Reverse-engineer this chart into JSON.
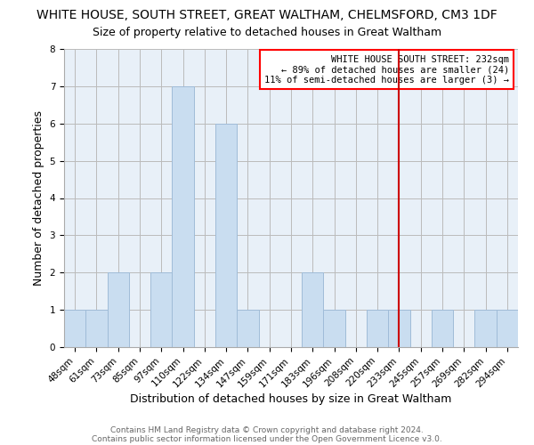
{
  "title": "WHITE HOUSE, SOUTH STREET, GREAT WALTHAM, CHELMSFORD, CM3 1DF",
  "subtitle": "Size of property relative to detached houses in Great Waltham",
  "xlabel": "Distribution of detached houses by size in Great Waltham",
  "ylabel": "Number of detached properties",
  "bar_labels": [
    "48sqm",
    "61sqm",
    "73sqm",
    "85sqm",
    "97sqm",
    "110sqm",
    "122sqm",
    "134sqm",
    "147sqm",
    "159sqm",
    "171sqm",
    "183sqm",
    "196sqm",
    "208sqm",
    "220sqm",
    "233sqm",
    "245sqm",
    "257sqm",
    "269sqm",
    "282sqm",
    "294sqm"
  ],
  "bar_values": [
    1,
    1,
    2,
    0,
    2,
    7,
    0,
    6,
    1,
    0,
    0,
    2,
    1,
    0,
    1,
    1,
    0,
    1,
    0,
    1,
    1
  ],
  "bar_color": "#c9ddf0",
  "bar_edge_color": "#a0bcd8",
  "plot_bg_color": "#e8f0f8",
  "ylim": [
    0,
    8
  ],
  "yticks": [
    0,
    1,
    2,
    3,
    4,
    5,
    6,
    7,
    8
  ],
  "vline_x_index": 15,
  "vline_color": "#cc0000",
  "annotation_title": "WHITE HOUSE SOUTH STREET: 232sqm",
  "annotation_line1": "← 89% of detached houses are smaller (24)",
  "annotation_line2": "11% of semi-detached houses are larger (3) →",
  "footer1": "Contains HM Land Registry data © Crown copyright and database right 2024.",
  "footer2": "Contains public sector information licensed under the Open Government Licence v3.0.",
  "bg_color": "#ffffff",
  "grid_color": "#bbbbbb",
  "title_fontsize": 10,
  "subtitle_fontsize": 9,
  "axis_label_fontsize": 9,
  "tick_fontsize": 7.5,
  "footer_fontsize": 6.5
}
